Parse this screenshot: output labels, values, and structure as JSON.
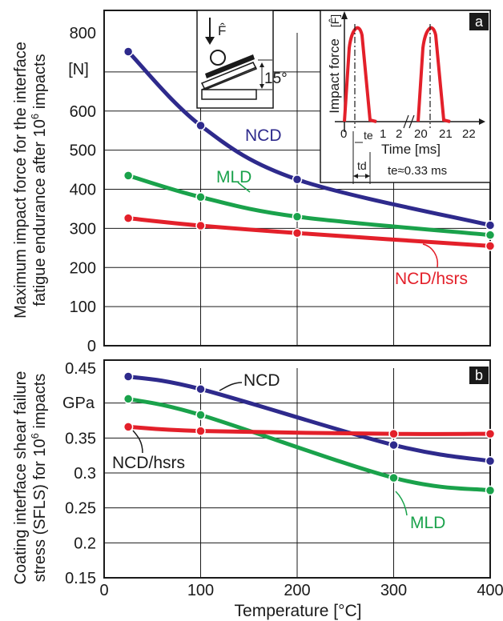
{
  "chart_data": [
    {
      "type": "line",
      "panel": "a",
      "ylabel_lines": [
        "Maximum impact force for the interface",
        "fatigue endurance after 10^6 impacts"
      ],
      "yunit": "[N]",
      "ylim": [
        0,
        800
      ],
      "yticks": [
        0,
        100,
        200,
        300,
        400,
        500,
        600,
        700,
        800
      ],
      "xlim": [
        0,
        400
      ],
      "grid": true,
      "series": [
        {
          "name": "NCD",
          "color": "#2e2a8c",
          "x": [
            25,
            100,
            200,
            400
          ],
          "y": [
            752,
            563,
            425,
            308
          ]
        },
        {
          "name": "MLD",
          "color": "#1aa24b",
          "x": [
            25,
            100,
            200,
            400
          ],
          "y": [
            435,
            380,
            330,
            283
          ]
        },
        {
          "name": "NCD/hsrs",
          "color": "#e3202a",
          "x": [
            25,
            100,
            200,
            400
          ],
          "y": [
            326,
            307,
            288,
            255
          ]
        }
      ],
      "inset_left": {
        "force_label": "F̂",
        "angle_label": "15°"
      },
      "inset_right": {
        "ylabel": "Impact force",
        "ysymbol": "[F̂]",
        "xlabel": "Time [ms]",
        "xtick_labels": [
          "0",
          "1",
          "2",
          "20",
          "21",
          "22"
        ],
        "te_label": "te",
        "td_label": "td",
        "note": "te≈0.33 ms"
      }
    },
    {
      "type": "line",
      "panel": "b",
      "ylabel_lines": [
        "Coating interface shear failure",
        "stress (SFLS) for 10^6 impacts"
      ],
      "yunit": "GPa",
      "ylim": [
        0.15,
        0.45
      ],
      "yticks": [
        0.15,
        0.2,
        0.25,
        0.3,
        0.35,
        0.4,
        0.45
      ],
      "xlim": [
        0,
        400
      ],
      "xticks": [
        0,
        100,
        200,
        300,
        400
      ],
      "xlabel": "Temperature [°C]",
      "grid": true,
      "series": [
        {
          "name": "NCD",
          "color": "#2e2a8c",
          "x": [
            25,
            100,
            300,
            400
          ],
          "y": [
            0.438,
            0.42,
            0.34,
            0.317
          ]
        },
        {
          "name": "MLD",
          "color": "#1aa24b",
          "x": [
            25,
            100,
            300,
            400
          ],
          "y": [
            0.406,
            0.383,
            0.293,
            0.275
          ]
        },
        {
          "name": "NCD/hsrs",
          "color": "#e3202a",
          "x": [
            25,
            100,
            300,
            400
          ],
          "y": [
            0.366,
            0.36,
            0.356,
            0.356
          ]
        }
      ]
    }
  ],
  "labels": {
    "panel_a": "a",
    "panel_b": "b",
    "a_ncd": "NCD",
    "a_mld": "MLD",
    "a_hsrs": "NCD/hsrs",
    "b_ncd": "NCD",
    "b_mld": "MLD",
    "b_hsrs": "NCD/hsrs"
  }
}
